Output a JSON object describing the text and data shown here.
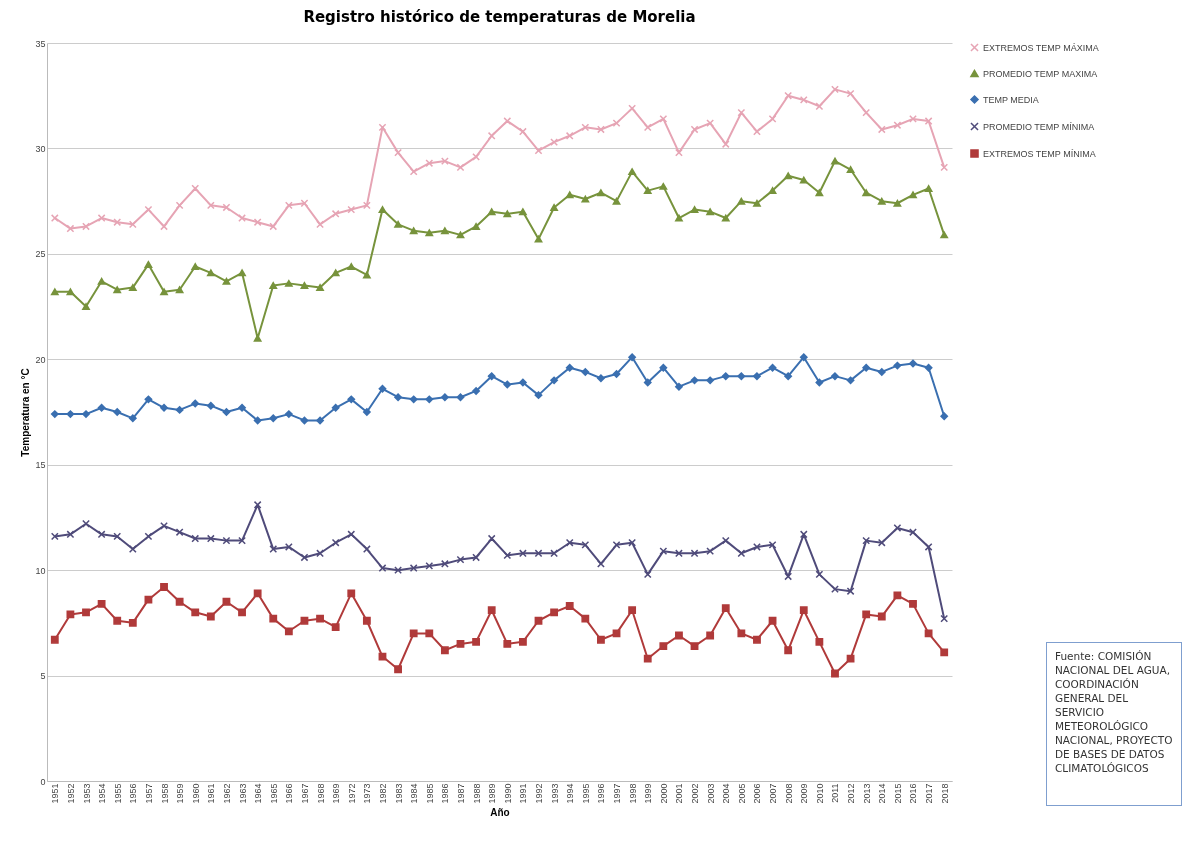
{
  "chart_data": {
    "type": "line",
    "title": "Registro histórico de temperaturas de Morelia",
    "xlabel": "Año",
    "ylabel": "Temperatura en °C",
    "categories": [
      "1951",
      "1952",
      "1953",
      "1954",
      "1955",
      "1956",
      "1957",
      "1958",
      "1959",
      "1960",
      "1961",
      "1962",
      "1963",
      "1964",
      "1965",
      "1966",
      "1967",
      "1968",
      "1969",
      "1972",
      "1973",
      "1982",
      "1983",
      "1984",
      "1985",
      "1986",
      "1987",
      "1988",
      "1989",
      "1990",
      "1991",
      "1992",
      "1993",
      "1994",
      "1995",
      "1996",
      "1997",
      "1998",
      "1999",
      "2000",
      "2001",
      "2002",
      "2003",
      "2004",
      "2005",
      "2006",
      "2007",
      "2008",
      "2009",
      "2010",
      "2011",
      "2012",
      "2013",
      "2014",
      "2015",
      "2016",
      "2017",
      "2018"
    ],
    "series": [
      {
        "name": "EXTREMOS TEMP MÁXIMA",
        "color": "#e6a4b4",
        "marker": "cross",
        "values": [
          26.7,
          26.2,
          26.3,
          26.7,
          26.5,
          26.4,
          27.1,
          26.3,
          27.3,
          28.1,
          27.3,
          27.2,
          26.7,
          26.5,
          26.3,
          27.3,
          27.4,
          26.4,
          26.9,
          27.1,
          27.3,
          31.0,
          29.8,
          28.9,
          29.3,
          29.4,
          29.1,
          29.6,
          30.6,
          31.3,
          30.8,
          29.9,
          30.3,
          30.6,
          31.0,
          30.9,
          31.2,
          31.9,
          31.0,
          31.4,
          29.8,
          30.9,
          31.2,
          30.2,
          31.7,
          30.8,
          31.4,
          32.5,
          32.3,
          32.0,
          32.8,
          32.6,
          31.7,
          30.9,
          31.1,
          31.4,
          31.3,
          29.1
        ]
      },
      {
        "name": "PROMEDIO TEMP MAXIMA",
        "color": "#77933c",
        "marker": "triangle",
        "values": [
          23.2,
          23.2,
          22.5,
          23.7,
          23.3,
          23.4,
          24.5,
          23.2,
          23.3,
          24.4,
          24.1,
          23.7,
          24.1,
          21.0,
          23.5,
          23.6,
          23.5,
          23.4,
          24.1,
          24.4,
          24.0,
          27.1,
          26.4,
          26.1,
          26.0,
          26.1,
          25.9,
          26.3,
          27.0,
          26.9,
          27.0,
          25.7,
          27.2,
          27.8,
          27.6,
          27.9,
          27.5,
          28.9,
          28.0,
          28.2,
          26.7,
          27.1,
          27.0,
          26.7,
          27.5,
          27.4,
          28.0,
          28.7,
          28.5,
          27.9,
          29.4,
          29.0,
          27.9,
          27.5,
          27.4,
          27.8,
          28.1,
          25.9
        ]
      },
      {
        "name": "TEMP MEDIA",
        "color": "#3a6fb0",
        "marker": "diamond",
        "values": [
          17.4,
          17.4,
          17.4,
          17.7,
          17.5,
          17.2,
          18.1,
          17.7,
          17.6,
          17.9,
          17.8,
          17.5,
          17.7,
          17.1,
          17.2,
          17.4,
          17.1,
          17.1,
          17.7,
          18.1,
          17.5,
          18.6,
          18.2,
          18.1,
          18.1,
          18.2,
          18.2,
          18.5,
          19.2,
          18.8,
          18.9,
          18.3,
          19.0,
          19.6,
          19.4,
          19.1,
          19.3,
          20.1,
          18.9,
          19.6,
          18.7,
          19.0,
          19.0,
          19.2,
          19.2,
          19.2,
          19.6,
          19.2,
          20.1,
          18.9,
          19.2,
          19.0,
          19.6,
          19.4,
          19.7,
          19.8,
          19.6,
          17.3
        ]
      },
      {
        "name": "PROMEDIO TEMP MÍNIMA",
        "color": "#4f4b7a",
        "marker": "cross",
        "values": [
          11.6,
          11.7,
          12.2,
          11.7,
          11.6,
          11.0,
          11.6,
          12.1,
          11.8,
          11.5,
          11.5,
          11.4,
          11.4,
          13.1,
          11.0,
          11.1,
          10.6,
          10.8,
          11.3,
          11.7,
          11.0,
          10.1,
          10.0,
          10.1,
          10.2,
          10.3,
          10.5,
          10.6,
          11.5,
          10.7,
          10.8,
          10.8,
          10.8,
          11.3,
          11.2,
          10.3,
          11.2,
          11.3,
          9.8,
          10.9,
          10.8,
          10.8,
          10.9,
          11.4,
          10.8,
          11.1,
          11.2,
          9.7,
          11.7,
          9.8,
          9.1,
          9.0,
          11.4,
          11.3,
          12.0,
          11.8,
          11.1,
          7.7
        ]
      },
      {
        "name": "EXTREMOS TEMP MÍNIMA",
        "color": "#b03a3a",
        "marker": "square",
        "values": [
          6.7,
          7.9,
          8.0,
          8.4,
          7.6,
          7.5,
          8.6,
          9.2,
          8.5,
          8.0,
          7.8,
          8.5,
          8.0,
          8.9,
          7.7,
          7.1,
          7.6,
          7.7,
          7.3,
          8.9,
          7.6,
          5.9,
          5.3,
          7.0,
          7.0,
          6.2,
          6.5,
          6.6,
          8.1,
          6.5,
          6.6,
          7.6,
          8.0,
          8.3,
          7.7,
          6.7,
          7.0,
          8.1,
          5.8,
          6.4,
          6.9,
          6.4,
          6.9,
          8.2,
          7.0,
          6.7,
          7.6,
          6.2,
          8.1,
          6.6,
          5.1,
          5.8,
          7.9,
          7.8,
          8.8,
          8.4,
          7.0,
          6.1
        ]
      }
    ],
    "ylim": [
      0,
      35
    ],
    "yticks": [
      0,
      5,
      10,
      15,
      20,
      25,
      30,
      35
    ],
    "grid": "y",
    "legend": "right",
    "annotations": [
      "Fuente: COMISIÓN NACIONAL DEL AGUA, COORDINACIÓN GENERAL DEL SERVICIO METEOROLÓGICO NACIONAL, PROYECTO DE BASES DE DATOS CLIMATOLÓGICOS"
    ]
  }
}
